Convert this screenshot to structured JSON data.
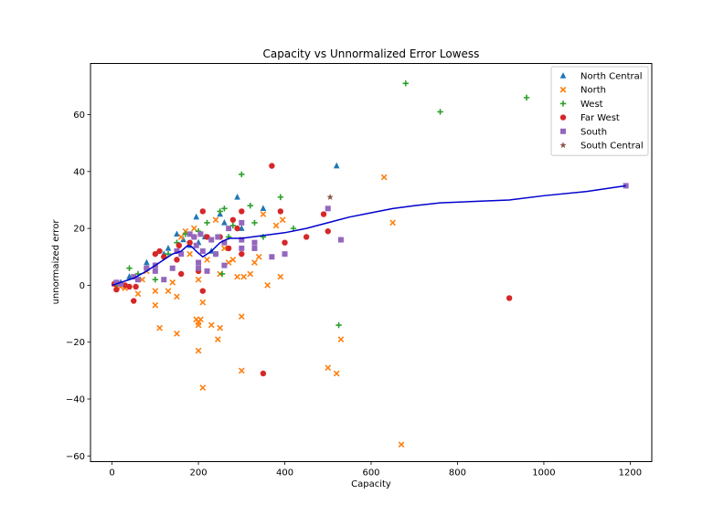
{
  "chart_data": {
    "type": "scatter",
    "title": "Capacity vs Unnormalized Error Lowess",
    "xlabel": "Capacity",
    "ylabel": "unnormaized error",
    "xlim": [
      -50,
      1250
    ],
    "ylim": [
      -62,
      78
    ],
    "xticks": [
      0,
      200,
      400,
      600,
      800,
      1000,
      1200
    ],
    "yticks": [
      -60,
      -40,
      -20,
      0,
      20,
      40,
      60
    ],
    "grid": false,
    "legend_position": "top-right",
    "series": [
      {
        "name": "North Central",
        "marker": "triangle",
        "color": "#1f77b4",
        "points": [
          [
            5,
            0.5
          ],
          [
            20,
            1
          ],
          [
            40,
            3
          ],
          [
            80,
            8
          ],
          [
            100,
            7
          ],
          [
            120,
            11
          ],
          [
            130,
            13
          ],
          [
            150,
            18
          ],
          [
            165,
            16
          ],
          [
            180,
            14
          ],
          [
            195,
            24
          ],
          [
            200,
            15
          ],
          [
            215,
            17
          ],
          [
            230,
            12
          ],
          [
            250,
            25
          ],
          [
            260,
            22
          ],
          [
            290,
            31
          ],
          [
            300,
            20
          ],
          [
            350,
            27
          ],
          [
            520,
            42
          ]
        ]
      },
      {
        "name": "North",
        "marker": "x",
        "color": "#ff7f0e",
        "points": [
          [
            10,
            -1
          ],
          [
            20,
            -0.5
          ],
          [
            30,
            -1
          ],
          [
            60,
            -3
          ],
          [
            70,
            2
          ],
          [
            80,
            5
          ],
          [
            100,
            -7
          ],
          [
            100,
            -2
          ],
          [
            110,
            -15
          ],
          [
            130,
            -2
          ],
          [
            140,
            1
          ],
          [
            150,
            -4
          ],
          [
            150,
            -17
          ],
          [
            160,
            17
          ],
          [
            170,
            19
          ],
          [
            180,
            11
          ],
          [
            190,
            20
          ],
          [
            195,
            -12
          ],
          [
            200,
            -13
          ],
          [
            200,
            -14
          ],
          [
            200,
            2
          ],
          [
            200,
            -23
          ],
          [
            205,
            -12
          ],
          [
            210,
            -36
          ],
          [
            210,
            -6
          ],
          [
            220,
            9
          ],
          [
            230,
            -14
          ],
          [
            240,
            23
          ],
          [
            245,
            -19
          ],
          [
            250,
            -15
          ],
          [
            250,
            4
          ],
          [
            260,
            13
          ],
          [
            270,
            8
          ],
          [
            280,
            9
          ],
          [
            290,
            3
          ],
          [
            300,
            -11
          ],
          [
            300,
            -30
          ],
          [
            305,
            3
          ],
          [
            320,
            4
          ],
          [
            330,
            8
          ],
          [
            340,
            10
          ],
          [
            350,
            25
          ],
          [
            360,
            0
          ],
          [
            380,
            21
          ],
          [
            390,
            3
          ],
          [
            395,
            23
          ],
          [
            500,
            -29
          ],
          [
            520,
            -31
          ],
          [
            530,
            -19
          ],
          [
            630,
            38
          ],
          [
            650,
            22
          ],
          [
            670,
            -56
          ]
        ]
      },
      {
        "name": "West",
        "marker": "plus",
        "color": "#2ca02c",
        "points": [
          [
            10,
            0
          ],
          [
            40,
            6
          ],
          [
            60,
            4
          ],
          [
            100,
            2
          ],
          [
            120,
            10
          ],
          [
            130,
            11
          ],
          [
            150,
            15
          ],
          [
            170,
            18
          ],
          [
            200,
            19
          ],
          [
            220,
            22
          ],
          [
            240,
            11
          ],
          [
            250,
            26
          ],
          [
            255,
            4
          ],
          [
            260,
            27
          ],
          [
            270,
            17
          ],
          [
            280,
            21
          ],
          [
            300,
            39
          ],
          [
            320,
            28
          ],
          [
            330,
            22
          ],
          [
            350,
            17
          ],
          [
            390,
            31
          ],
          [
            420,
            20
          ],
          [
            525,
            -14
          ],
          [
            680,
            71
          ],
          [
            760,
            61
          ],
          [
            960,
            66
          ]
        ]
      },
      {
        "name": "Far West",
        "marker": "circle",
        "color": "#d62728",
        "points": [
          [
            5,
            0.5
          ],
          [
            10,
            -1.5
          ],
          [
            30,
            0
          ],
          [
            40,
            -0.5
          ],
          [
            50,
            -5.5
          ],
          [
            55,
            -0.5
          ],
          [
            80,
            6
          ],
          [
            100,
            11
          ],
          [
            110,
            12
          ],
          [
            120,
            10
          ],
          [
            150,
            9
          ],
          [
            155,
            14
          ],
          [
            160,
            4
          ],
          [
            180,
            15
          ],
          [
            190,
            17
          ],
          [
            200,
            5
          ],
          [
            210,
            -2
          ],
          [
            210,
            26
          ],
          [
            220,
            17
          ],
          [
            250,
            17
          ],
          [
            270,
            13
          ],
          [
            280,
            23
          ],
          [
            290,
            20
          ],
          [
            300,
            26
          ],
          [
            300,
            11
          ],
          [
            350,
            -31
          ],
          [
            370,
            42
          ],
          [
            390,
            26
          ],
          [
            400,
            15
          ],
          [
            450,
            17
          ],
          [
            490,
            25
          ],
          [
            500,
            19
          ],
          [
            920,
            -4.5
          ]
        ]
      },
      {
        "name": "South",
        "marker": "square",
        "color": "#9467bd",
        "points": [
          [
            10,
            1
          ],
          [
            20,
            0.5
          ],
          [
            50,
            3
          ],
          [
            60,
            2
          ],
          [
            80,
            6
          ],
          [
            100,
            5
          ],
          [
            100,
            7
          ],
          [
            120,
            2
          ],
          [
            140,
            6
          ],
          [
            150,
            12
          ],
          [
            160,
            11
          ],
          [
            180,
            18
          ],
          [
            190,
            17
          ],
          [
            195,
            14
          ],
          [
            200,
            8
          ],
          [
            200,
            6
          ],
          [
            205,
            18
          ],
          [
            210,
            12
          ],
          [
            220,
            5
          ],
          [
            230,
            16
          ],
          [
            240,
            11
          ],
          [
            245,
            17
          ],
          [
            260,
            7
          ],
          [
            260,
            15
          ],
          [
            270,
            20
          ],
          [
            300,
            22
          ],
          [
            300,
            13
          ],
          [
            300,
            16
          ],
          [
            330,
            13
          ],
          [
            330,
            15
          ],
          [
            370,
            10
          ],
          [
            400,
            11
          ],
          [
            500,
            27
          ],
          [
            530,
            16
          ],
          [
            1190,
            35
          ]
        ]
      },
      {
        "name": "South Central",
        "marker": "star",
        "color": "#8c564b",
        "points": [
          [
            505,
            31
          ]
        ]
      }
    ],
    "lowess": {
      "color": "#0000cd",
      "points": [
        [
          0,
          0
        ],
        [
          20,
          1
        ],
        [
          50,
          2.5
        ],
        [
          80,
          5
        ],
        [
          100,
          7
        ],
        [
          120,
          9
        ],
        [
          140,
          11
        ],
        [
          160,
          12
        ],
        [
          175,
          14
        ],
        [
          185,
          13.5
        ],
        [
          195,
          12
        ],
        [
          210,
          10
        ],
        [
          230,
          12
        ],
        [
          250,
          15
        ],
        [
          270,
          16.5
        ],
        [
          300,
          16.5
        ],
        [
          350,
          17.5
        ],
        [
          400,
          18.5
        ],
        [
          450,
          20
        ],
        [
          500,
          22
        ],
        [
          550,
          24
        ],
        [
          600,
          25.5
        ],
        [
          650,
          27
        ],
        [
          700,
          28
        ],
        [
          760,
          29
        ],
        [
          920,
          30
        ],
        [
          1000,
          31.5
        ],
        [
          1100,
          33
        ],
        [
          1190,
          35
        ]
      ]
    }
  }
}
